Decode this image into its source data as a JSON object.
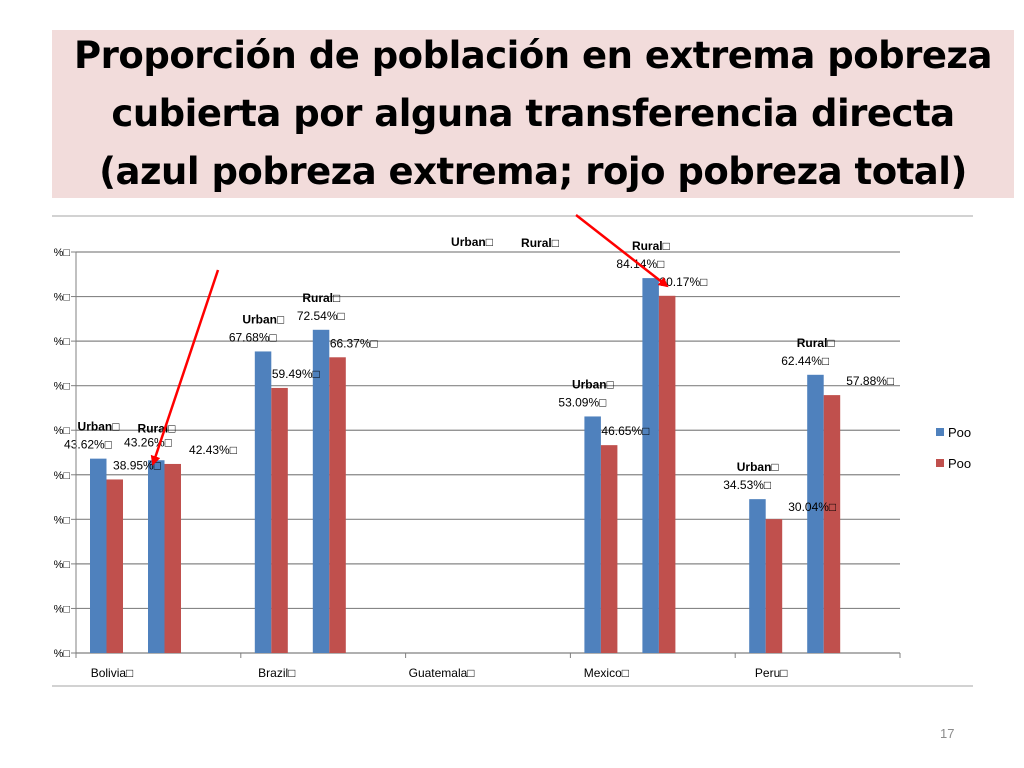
{
  "slide": {
    "title": "Proporción de población en extrema pobreza cubierta por alguna transferencia directa (azul pobreza extrema; rojo pobreza total)",
    "page_number": "17"
  },
  "colors": {
    "series_blue": "#4f81bd",
    "series_red": "#c0504d",
    "title_bg": "#f2dcdb",
    "arrow": "#ff0000"
  },
  "chart_data": {
    "type": "bar",
    "categories": [
      "Bolivia",
      "Brazil",
      "Guatemala",
      "Mexico",
      "Peru"
    ],
    "y_tick_labels": [
      "%",
      "%",
      "%",
      "%",
      "%",
      "%",
      "%",
      "%",
      "%",
      "%"
    ],
    "ylim": [
      0,
      90
    ],
    "grid": true,
    "legend_position": "right",
    "legend": [
      "Poo",
      "Poo"
    ],
    "groups": [
      {
        "category": "Bolivia",
        "urban": {
          "label": "Urban",
          "blue": 43.62,
          "red": 38.95
        },
        "rural": {
          "label": "Rural",
          "blue": 43.26,
          "red": 42.43
        }
      },
      {
        "category": "Brazil",
        "urban": {
          "label": "Urban",
          "blue": 67.68,
          "red": 59.49
        },
        "rural": {
          "label": "Rural",
          "blue": 72.54,
          "red": 66.37
        }
      },
      {
        "category": "Guatemala",
        "urban": {
          "label": "Urban",
          "blue": null,
          "red": null
        },
        "rural": {
          "label": "Rural",
          "blue": null,
          "red": null
        }
      },
      {
        "category": "Mexico",
        "urban": {
          "label": "Urban",
          "blue": 53.09,
          "red": 46.65
        },
        "rural": {
          "label": "Rural",
          "blue": 84.14,
          "red": 80.17
        }
      },
      {
        "category": "Peru",
        "urban": {
          "label": "Urban",
          "blue": 34.53,
          "red": 30.04
        },
        "rural": {
          "label": "Rural",
          "blue": 62.44,
          "red": 57.88
        }
      }
    ]
  }
}
